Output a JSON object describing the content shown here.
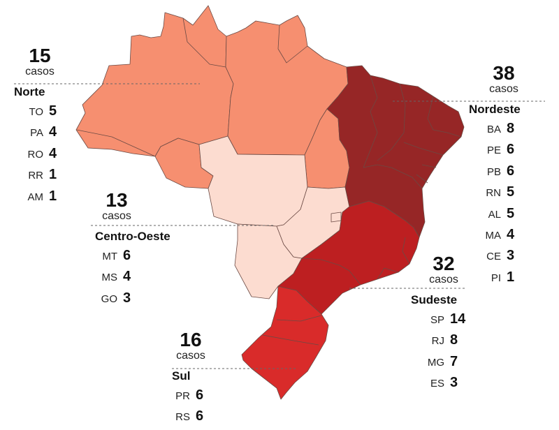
{
  "colors": {
    "norte": "#f68f70",
    "centro_oeste": "#fcdcd0",
    "nordeste": "#962626",
    "sudeste": "#bd1f21",
    "sul": "#d92b2a",
    "border": "#6b4a44"
  },
  "regions": {
    "norte": {
      "total": "15",
      "unit": "casos",
      "name": "Norte",
      "states": [
        {
          "abbr": "TO",
          "value": "5"
        },
        {
          "abbr": "PA",
          "value": "4"
        },
        {
          "abbr": "RO",
          "value": "4"
        },
        {
          "abbr": "RR",
          "value": "1"
        },
        {
          "abbr": "AM",
          "value": "1"
        }
      ]
    },
    "centro_oeste": {
      "total": "13",
      "unit": "casos",
      "name": "Centro-Oeste",
      "states": [
        {
          "abbr": "MT",
          "value": "6"
        },
        {
          "abbr": "MS",
          "value": "4"
        },
        {
          "abbr": "GO",
          "value": "3"
        }
      ]
    },
    "sul": {
      "total": "16",
      "unit": "casos",
      "name": "Sul",
      "states": [
        {
          "abbr": "PR",
          "value": "6"
        },
        {
          "abbr": "RS",
          "value": "6"
        }
      ]
    },
    "nordeste": {
      "total": "38",
      "unit": "casos",
      "name": "Nordeste",
      "states": [
        {
          "abbr": "BA",
          "value": "8"
        },
        {
          "abbr": "PE",
          "value": "6"
        },
        {
          "abbr": "PB",
          "value": "6"
        },
        {
          "abbr": "RN",
          "value": "5"
        },
        {
          "abbr": "AL",
          "value": "5"
        },
        {
          "abbr": "MA",
          "value": "4"
        },
        {
          "abbr": "CE",
          "value": "3"
        },
        {
          "abbr": "PI",
          "value": "1"
        }
      ]
    },
    "sudeste": {
      "total": "32",
      "unit": "casos",
      "name": "Sudeste",
      "states": [
        {
          "abbr": "SP",
          "value": "14"
        },
        {
          "abbr": "RJ",
          "value": "8"
        },
        {
          "abbr": "MG",
          "value": "7"
        },
        {
          "abbr": "ES",
          "value": "3"
        }
      ]
    }
  }
}
